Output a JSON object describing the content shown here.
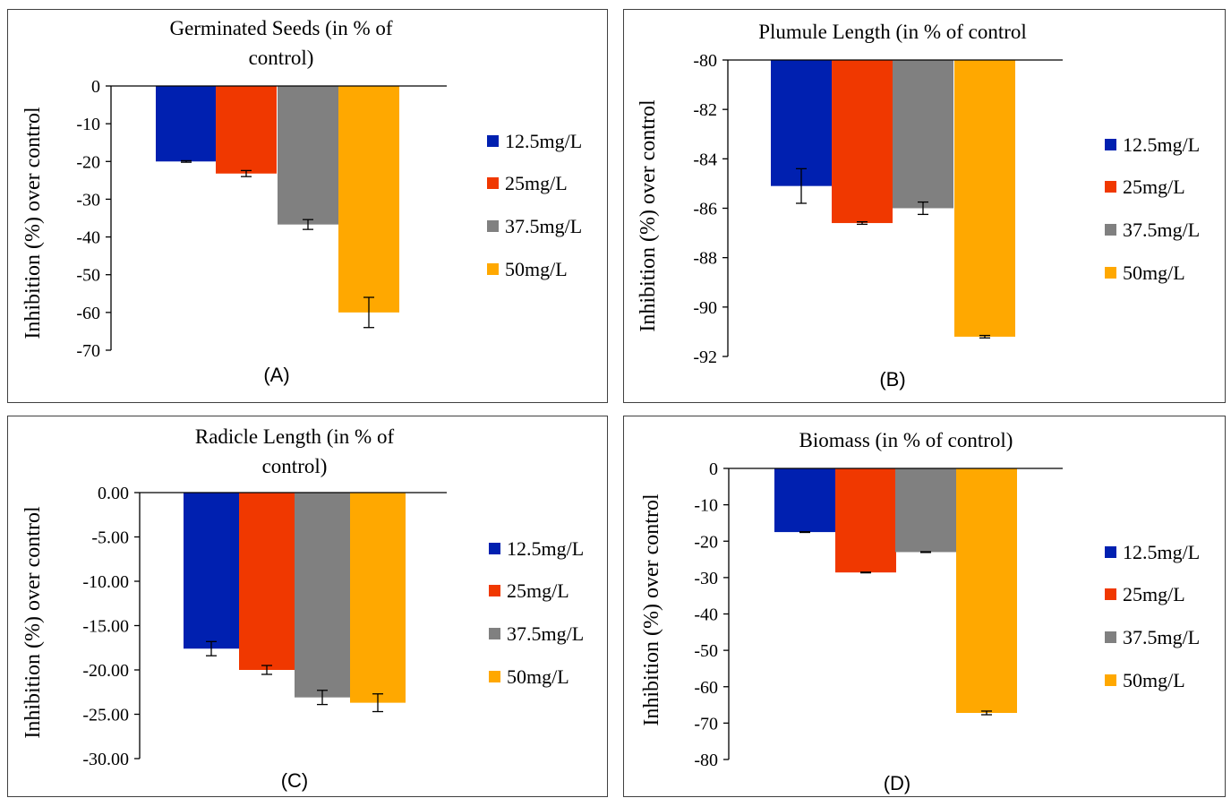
{
  "colors": {
    "s1": "#0020b0",
    "s2": "#f03800",
    "s3": "#808080",
    "s4": "#ffa800",
    "axis": "#000000"
  },
  "chart_data": [
    {
      "type": "bar",
      "panel_label": "(A)",
      "title": [
        "Germinated Seeds (in % of",
        "control)"
      ],
      "ylabel": "Inhibition (%) over control",
      "ylim": [
        -70,
        0
      ],
      "yticks": [
        "0",
        "-10",
        "-20",
        "-30",
        "-40",
        "-50",
        "-60",
        "-70"
      ],
      "categories": [
        ""
      ],
      "series": [
        {
          "name": "12.5mg/L",
          "values": [
            -20.0
          ],
          "error": [
            0.2
          ]
        },
        {
          "name": "25mg/L",
          "values": [
            -23.2
          ],
          "error": [
            0.8
          ]
        },
        {
          "name": "37.5mg/L",
          "values": [
            -36.7
          ],
          "error": [
            1.3
          ]
        },
        {
          "name": "50mg/L",
          "values": [
            -60.0
          ],
          "error": [
            4.0
          ]
        }
      ],
      "legend": "right"
    },
    {
      "type": "bar",
      "panel_label": "(B)",
      "title": [
        "Plumule Length (in % of control"
      ],
      "ylabel": "Inhibition (%) over control",
      "ylim": [
        -92,
        -80
      ],
      "yticks": [
        "-80",
        "-82",
        "-84",
        "-86",
        "-88",
        "-90",
        "-92"
      ],
      "categories": [
        ""
      ],
      "series": [
        {
          "name": "12.5mg/L",
          "values": [
            -85.1
          ],
          "error": [
            0.7
          ]
        },
        {
          "name": "25mg/L",
          "values": [
            -86.6
          ],
          "error": [
            0.05
          ]
        },
        {
          "name": "37.5mg/L",
          "values": [
            -86.0
          ],
          "error": [
            0.25
          ]
        },
        {
          "name": "50mg/L",
          "values": [
            -91.2
          ],
          "error": [
            0.05
          ]
        }
      ],
      "legend": "right"
    },
    {
      "type": "bar",
      "panel_label": "(C)",
      "title": [
        "Radicle Length (in % of",
        "control)"
      ],
      "ylabel": "Inhibition (%) over control",
      "ylim": [
        -30,
        0
      ],
      "yticks": [
        "0.00",
        "-5.00",
        "-10.00",
        "-15.00",
        "-20.00",
        "-25.00",
        "-30.00"
      ],
      "categories": [
        ""
      ],
      "series": [
        {
          "name": "12.5mg/L",
          "values": [
            -17.6
          ],
          "error": [
            0.8
          ]
        },
        {
          "name": "25mg/L",
          "values": [
            -20.0
          ],
          "error": [
            0.5
          ]
        },
        {
          "name": "37.5mg/L",
          "values": [
            -23.1
          ],
          "error": [
            0.8
          ]
        },
        {
          "name": "50mg/L",
          "values": [
            -23.7
          ],
          "error": [
            1.0
          ]
        }
      ],
      "legend": "right"
    },
    {
      "type": "bar",
      "panel_label": "(D)",
      "title": [
        "Biomass (in % of control)"
      ],
      "ylabel": "Inhibition (%) over control",
      "ylim": [
        -80,
        0
      ],
      "yticks": [
        "0",
        "-10",
        "-20",
        "-30",
        "-40",
        "-50",
        "-60",
        "-70",
        "-80"
      ],
      "categories": [
        ""
      ],
      "series": [
        {
          "name": "12.5mg/L",
          "values": [
            -17.5
          ],
          "error": [
            0.1
          ]
        },
        {
          "name": "25mg/L",
          "values": [
            -28.6
          ],
          "error": [
            0.1
          ]
        },
        {
          "name": "37.5mg/L",
          "values": [
            -23.0
          ],
          "error": [
            0.1
          ]
        },
        {
          "name": "50mg/L",
          "values": [
            -67.2
          ],
          "error": [
            0.5
          ]
        }
      ],
      "legend": "right"
    }
  ]
}
